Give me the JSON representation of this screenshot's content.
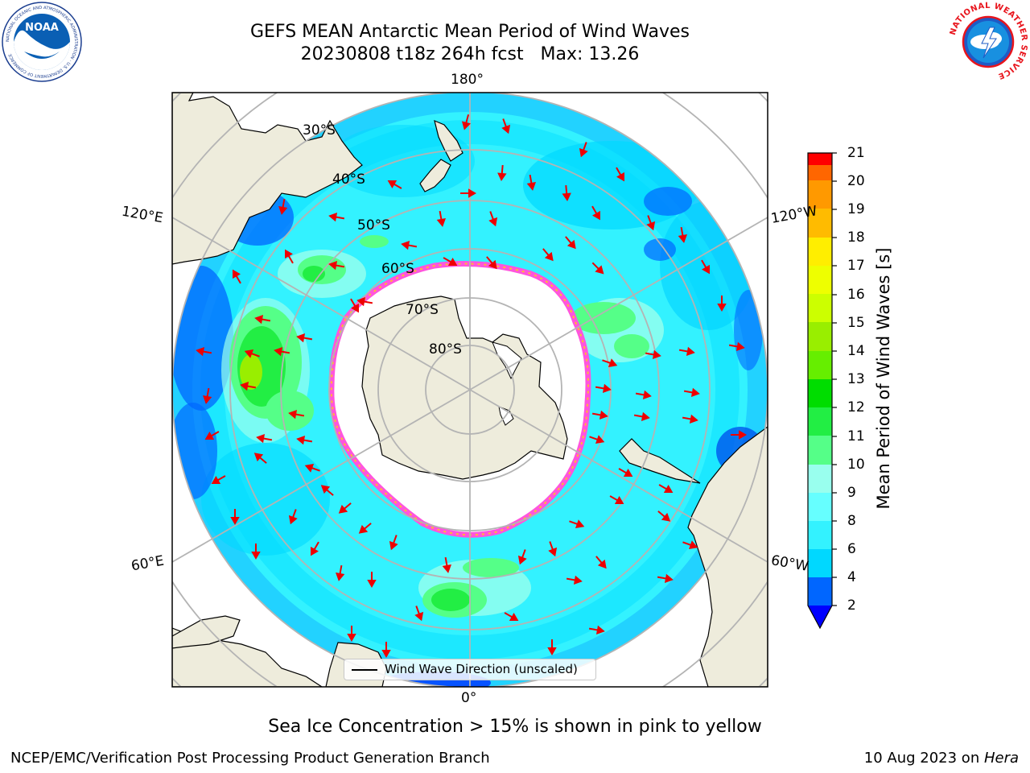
{
  "title": {
    "line1": "GEFS MEAN Antarctic Mean Period of Wind Waves",
    "line2": "20230808 t18z 264h fcst   Max: 13.26"
  },
  "map": {
    "projection": "south-polar-stereographic",
    "lon_labels": {
      "top": "180°",
      "bottom": "0°",
      "left_upper": "120°E",
      "left_lower": "60°E",
      "right_upper": "120°W",
      "right_lower": "60°W"
    },
    "lat_labels": [
      "30°S",
      "40°S",
      "50°S",
      "60°S",
      "70°S",
      "80°S"
    ],
    "legend": "Wind Wave Direction (unscaled)"
  },
  "colorbar": {
    "label": "Mean Period of Wind Waves [s]",
    "ticks": [
      "21",
      "20",
      "19",
      "18",
      "17",
      "16",
      "15",
      "14",
      "13",
      "12",
      "11",
      "10",
      "9",
      "8",
      "6",
      "4",
      "2"
    ],
    "colors_bottom_to_top": [
      "#0066ff",
      "#00d8ff",
      "#33f2ff",
      "#66ffff",
      "#99ffee",
      "#55ff88",
      "#22ee44",
      "#00dd00",
      "#66ee00",
      "#99ee00",
      "#ccff00",
      "#eeff00",
      "#ffee00",
      "#ffbb00",
      "#ff9900",
      "#ff6600",
      "#ff3300",
      "#ff0000"
    ],
    "under_color": "#0000ff"
  },
  "colors": {
    "land": "#eeecdc",
    "ocean_base": "#33f2ff",
    "arrow": "#ee0000",
    "grid": "#b4b4b4",
    "ice_edge": "#ff55dd"
  },
  "logos": {
    "noaa": {
      "word": "NOAA",
      "ring_text": "NATIONAL OCEANIC AND ATMOSPHERIC ADMINISTRATION · U.S. DEPARTMENT OF COMMERCE"
    },
    "nws": {
      "ring_text": "NATIONAL WEATHER SERVICE"
    }
  },
  "caption": "Sea Ice Concentration > 15% is shown in pink to yellow",
  "footer": {
    "left": "NCEP/EMC/Verification Post Processing Product Generation Branch",
    "right_prefix": "10 Aug 2023 on ",
    "right_host": "Hera"
  }
}
